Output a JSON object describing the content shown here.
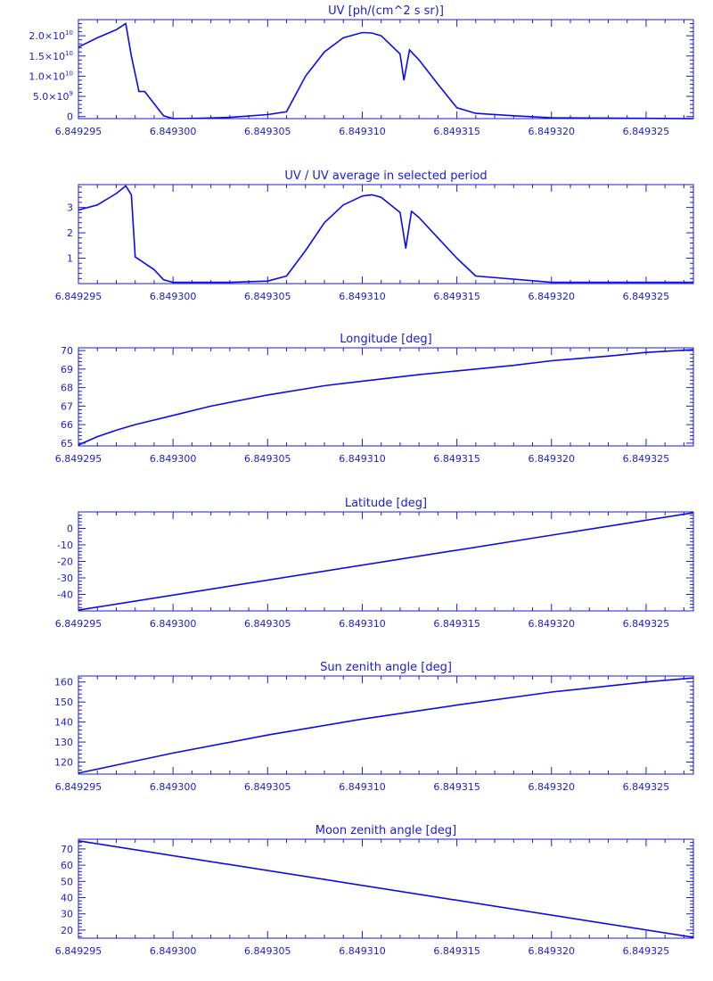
{
  "colors": {
    "line": "#0a0af0",
    "axis": "#1a1adc",
    "background": "#ffffff"
  },
  "chart_data": [
    {
      "type": "line",
      "title": "UV [ph/(cm^2 s sr)]",
      "xlim": [
        6.849295,
        6.8493275
      ],
      "ylim": [
        -0.05,
        2.4
      ],
      "ytick_values": [
        0,
        0.5,
        1.0,
        1.5,
        2.0
      ],
      "ytick_labels": [
        {
          "text": "0",
          "mant": "",
          "exp": ""
        },
        {
          "text": "",
          "mant": "5.0×10",
          "exp": "9"
        },
        {
          "text": "",
          "mant": "1.0×10",
          "exp": "10"
        },
        {
          "text": "",
          "mant": "1.5×10",
          "exp": "10"
        },
        {
          "text": "",
          "mant": "2.0×10",
          "exp": "10"
        }
      ],
      "y_unit": "1e10",
      "xticks": [
        "6.849295",
        "6.849300",
        "6.849305",
        "6.849310",
        "6.849315",
        "6.849320",
        "6.849325"
      ],
      "xtick_values": [
        6.849295,
        6.8493,
        6.849305,
        6.84931,
        6.849315,
        6.84932,
        6.849325
      ],
      "step": true,
      "series": [
        {
          "x": [
            6.849295,
            6.849296,
            6.849297,
            6.8492975,
            6.8492978,
            6.8492982,
            6.8492985,
            6.8492995,
            6.8493,
            6.8493015,
            6.849303,
            6.849305,
            6.849306,
            6.849307,
            6.849308,
            6.849309,
            6.84931,
            6.8493105,
            6.849311,
            6.849312,
            6.8493122,
            6.8493125,
            6.849313,
            6.849314,
            6.849315,
            6.849316,
            6.849318,
            6.84932,
            6.8493275
          ],
          "y": [
            1.72,
            1.95,
            2.15,
            2.3,
            1.5,
            0.62,
            0.62,
            0.02,
            -0.05,
            -0.04,
            -0.02,
            0.05,
            0.12,
            1.0,
            1.6,
            1.95,
            2.08,
            2.07,
            2.0,
            1.55,
            0.9,
            1.65,
            1.4,
            0.8,
            0.22,
            0.08,
            0.02,
            -0.03,
            -0.05
          ]
        }
      ]
    },
    {
      "type": "line",
      "title": "UV / UV average in selected period",
      "xlim": [
        6.849295,
        6.8493275
      ],
      "ylim": [
        0,
        3.9
      ],
      "ytick_values": [
        1,
        2,
        3
      ],
      "ytick_labels": [
        {
          "text": "1"
        },
        {
          "text": "2"
        },
        {
          "text": "3"
        }
      ],
      "xticks": [
        "6.849295",
        "6.849300",
        "6.849305",
        "6.849310",
        "6.849315",
        "6.849320",
        "6.849325"
      ],
      "xtick_values": [
        6.849295,
        6.8493,
        6.849305,
        6.84931,
        6.849315,
        6.84932,
        6.849325
      ],
      "step": false,
      "series": [
        {
          "x": [
            6.849295,
            6.849296,
            6.849297,
            6.8492975,
            6.8492978,
            6.849298,
            6.849299,
            6.8492995,
            6.8493,
            6.849303,
            6.849305,
            6.849306,
            6.849307,
            6.849308,
            6.849309,
            6.84931,
            6.8493105,
            6.849311,
            6.849312,
            6.8493123,
            6.8493126,
            6.849313,
            6.849314,
            6.849315,
            6.849316,
            6.84932,
            6.8493275
          ],
          "y": [
            2.9,
            3.1,
            3.55,
            3.85,
            3.5,
            1.05,
            0.55,
            0.15,
            0.05,
            0.05,
            0.1,
            0.3,
            1.3,
            2.4,
            3.1,
            3.45,
            3.5,
            3.4,
            2.8,
            1.4,
            2.85,
            2.6,
            1.8,
            1.0,
            0.3,
            0.05,
            0.05
          ]
        }
      ]
    },
    {
      "type": "line",
      "title": "Longitude [deg]",
      "xlim": [
        6.849295,
        6.8493275
      ],
      "ylim": [
        64.85,
        70.15
      ],
      "ytick_values": [
        65,
        66,
        67,
        68,
        69,
        70
      ],
      "ytick_labels": [
        {
          "text": "65"
        },
        {
          "text": "66"
        },
        {
          "text": "67"
        },
        {
          "text": "68"
        },
        {
          "text": "69"
        },
        {
          "text": "70"
        }
      ],
      "xticks": [
        "6.849295",
        "6.849300",
        "6.849305",
        "6.849310",
        "6.849315",
        "6.849320",
        "6.849325"
      ],
      "xtick_values": [
        6.849295,
        6.8493,
        6.849305,
        6.84931,
        6.849315,
        6.84932,
        6.849325
      ],
      "step": false,
      "series": [
        {
          "x": [
            6.849295,
            6.849296,
            6.849297,
            6.849298,
            6.8493,
            6.849302,
            6.849305,
            6.849308,
            6.84931,
            6.849313,
            6.849315,
            6.849318,
            6.84932,
            6.849323,
            6.849325,
            6.8493275
          ],
          "y": [
            64.9,
            65.35,
            65.7,
            66.0,
            66.5,
            67.0,
            67.6,
            68.1,
            68.35,
            68.7,
            68.9,
            69.2,
            69.45,
            69.7,
            69.9,
            70.05
          ]
        }
      ]
    },
    {
      "type": "line",
      "title": "Latitude [deg]",
      "xlim": [
        6.849295,
        6.8493275
      ],
      "ylim": [
        -50,
        10
      ],
      "ytick_values": [
        -40,
        -30,
        -20,
        -10,
        0
      ],
      "ytick_labels": [
        {
          "text": "-40"
        },
        {
          "text": "-30"
        },
        {
          "text": "-20"
        },
        {
          "text": "-10"
        },
        {
          "text": "0"
        }
      ],
      "xticks": [
        "6.849295",
        "6.849300",
        "6.849305",
        "6.849310",
        "6.849315",
        "6.849320",
        "6.849325"
      ],
      "xtick_values": [
        6.849295,
        6.8493,
        6.849305,
        6.84931,
        6.849315,
        6.84932,
        6.849325
      ],
      "step": false,
      "series": [
        {
          "x": [
            6.849295,
            6.8493275
          ],
          "y": [
            -49.5,
            9.5
          ]
        }
      ]
    },
    {
      "type": "line",
      "title": "Sun zenith angle [deg]",
      "xlim": [
        6.849295,
        6.8493275
      ],
      "ylim": [
        114,
        163
      ],
      "ytick_values": [
        120,
        130,
        140,
        150,
        160
      ],
      "ytick_labels": [
        {
          "text": "120"
        },
        {
          "text": "130"
        },
        {
          "text": "140"
        },
        {
          "text": "150"
        },
        {
          "text": "160"
        }
      ],
      "xticks": [
        "6.849295",
        "6.849300",
        "6.849305",
        "6.849310",
        "6.849315",
        "6.849320",
        "6.849325"
      ],
      "xtick_values": [
        6.849295,
        6.8493,
        6.849305,
        6.84931,
        6.849315,
        6.84932,
        6.849325
      ],
      "step": false,
      "series": [
        {
          "x": [
            6.849295,
            6.849297,
            6.8493,
            6.849305,
            6.84931,
            6.849315,
            6.84932,
            6.849325,
            6.8493275
          ],
          "y": [
            114.5,
            118.5,
            124.5,
            133.5,
            141.5,
            148.5,
            155,
            160,
            162
          ]
        }
      ]
    },
    {
      "type": "line",
      "title": "Moon zenith angle [deg]",
      "xlim": [
        6.849295,
        6.8493275
      ],
      "ylim": [
        15,
        76
      ],
      "ytick_values": [
        20,
        30,
        40,
        50,
        60,
        70
      ],
      "ytick_labels": [
        {
          "text": "20"
        },
        {
          "text": "30"
        },
        {
          "text": "40"
        },
        {
          "text": "50"
        },
        {
          "text": "60"
        },
        {
          "text": "70"
        }
      ],
      "xticks": [
        "6.849295",
        "6.849300",
        "6.849305",
        "6.849310",
        "6.849315",
        "6.849320",
        "6.849325"
      ],
      "xtick_values": [
        6.849295,
        6.8493,
        6.849305,
        6.84931,
        6.849315,
        6.84932,
        6.849325
      ],
      "step": false,
      "series": [
        {
          "x": [
            6.849295,
            6.8493275
          ],
          "y": [
            75,
            15.5
          ]
        }
      ]
    }
  ]
}
